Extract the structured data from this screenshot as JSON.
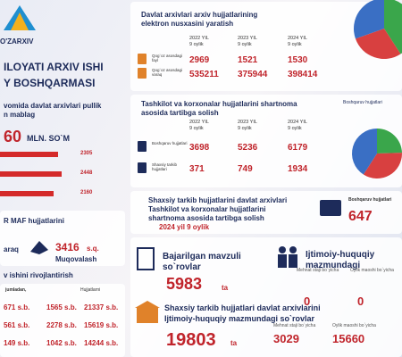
{
  "header": {
    "logo": "O'ZARXIV",
    "title_line1": "ILOYATI ARXIV ISHI",
    "title_line2": "Y BOSHQARMASI"
  },
  "income": {
    "text_line1": "vomida davlat arxivlari pullik",
    "text_line2": "n mablag",
    "total": "60",
    "unit": "MLN. SO`M",
    "bars": [
      2305,
      2448,
      2160
    ]
  },
  "maf": {
    "title": "R MAF hujjatlarini",
    "left_label": "araq",
    "value": 3416,
    "unit": "s.q.",
    "caption": "Muqovalash"
  },
  "develop": {
    "title": "v ishini rivojlantirish",
    "headers": [
      "jumladan,",
      "Hujjatlarni"
    ],
    "rows": [
      [
        "671 s.b.",
        "1565 s.b.",
        "21337 s.b."
      ],
      [
        "561 s.b.",
        "2278 s.b.",
        "15619 s.b."
      ],
      [
        "149 s.b.",
        "1042 s.b.",
        "14244 s.b."
      ]
    ]
  },
  "electronic": {
    "title_line1": "Davlat arxivlari arxiv hujjatlarining",
    "title_line2": "elektron nusxasini yaratish",
    "years": [
      {
        "year": "2022 YIL",
        "period": "9 oylik"
      },
      {
        "year": "2023 YIL",
        "period": "9 oylik"
      },
      {
        "year": "2024 YIL",
        "period": "9 oylik"
      }
    ],
    "rows": [
      {
        "label": "Qog`oz asosdagi fayl",
        "values": [
          2969,
          1521,
          1530
        ]
      },
      {
        "label": "Qog`oz asosdagi varaq",
        "values": [
          535211,
          375944,
          398414
        ]
      }
    ]
  },
  "contract": {
    "title_line1": "Tashkilot va korxonalar hujjatlarini shartnoma",
    "title_line2": "asosida tartibga solish",
    "years": [
      {
        "year": "2022 YIL",
        "period": "9 oylik"
      },
      {
        "year": "2023 YIL",
        "period": "9 oylik"
      },
      {
        "year": "2024 YIL",
        "period": "9 oylik"
      }
    ],
    "rows": [
      {
        "label": "Boshqaruv hujjatlari",
        "values": [
          3698,
          5236,
          6179
        ]
      },
      {
        "label": "Shaxsiy tarkib hujjatlari",
        "values": [
          371,
          749,
          1934
        ]
      }
    ],
    "legend": "Boshqaruv hujjatlari"
  },
  "personnel": {
    "title_line1": "Shaxsiy tarkib hujjatlarini davlat arxivlari",
    "title_line2": "Tashkilot va korxonalar hujjatlarini",
    "title_line3": "shartnoma asosida tartibga solish",
    "period": "2024 yil 9 oylik",
    "label": "Boshqaruv hujjatlari",
    "value": 647
  },
  "requests": {
    "title_line1": "Bajarilgan mavzuli",
    "title_line2": "so`rovlar",
    "value": 5983,
    "unit": "ta"
  },
  "social": {
    "title_line1": "Ijtimoiy-huquqiy",
    "title_line2": "mazmundagi",
    "labels": [
      "Mehnat staji bo`yicha",
      "Oylik maoshi bo`yicha"
    ],
    "values": [
      0,
      0
    ]
  },
  "archive_requests": {
    "title_line1": "Shaxsiy tarkib hujjatlari davlat arxivlarini",
    "title_line2": "Ijtimoiy-huquqiy mazmundagi so`rovlar",
    "value": 19803,
    "unit": "ta",
    "labels": [
      "Mehnat staji bo`yicha",
      "Oylik maoshi bo`yicha"
    ],
    "values": [
      3029,
      15660
    ]
  }
}
